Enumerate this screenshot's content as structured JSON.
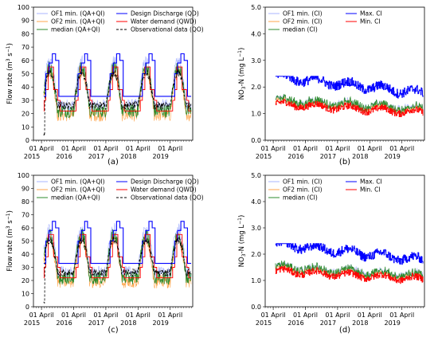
{
  "chart_data": [
    {
      "id": "a",
      "panel_label": "(a)",
      "type": "line",
      "ylabel_text": "Flow rate (m",
      "ylabel_sup1": "3",
      "ylabel_mid": " s",
      "ylabel_sup2": "−1",
      "ylabel_end": ")",
      "ylim": [
        0,
        100
      ],
      "yticks": [
        "0",
        "10",
        "20",
        "30",
        "40",
        "50",
        "60",
        "70",
        "80",
        "90",
        "100"
      ],
      "xlim": [
        2015.0,
        2019.95
      ],
      "xticks": [
        {
          "date": "01 April",
          "year": "2015",
          "x": 2015.25
        },
        {
          "date": "01 April",
          "year": "2016",
          "x": 2016.25
        },
        {
          "date": "01 April",
          "year": "2017",
          "x": 2017.25
        },
        {
          "date": "01 April",
          "year": "2018",
          "x": 2018.25
        },
        {
          "date": "01 April",
          "year": "2019",
          "x": 2019.25
        }
      ],
      "legend": [
        {
          "label": "OF1 min. (QA+QI)",
          "color": "#a8b4ff",
          "dash": ""
        },
        {
          "label": "Design Discharge (QD)",
          "color": "#0000ff",
          "dash": ""
        },
        {
          "label": "OF2 min. (QA+QI)",
          "color": "#ffa64d",
          "dash": ""
        },
        {
          "label": "Water demand (QWD)",
          "color": "#ff0000",
          "dash": ""
        },
        {
          "label": "median (QA+QI)",
          "color": "#2e8b2e",
          "dash": ""
        },
        {
          "label": "Observational data (QO)",
          "color": "#000000",
          "dash": "3,2"
        }
      ],
      "design_discharge": {
        "base": 33,
        "steps": [
          50,
          58,
          65,
          60
        ]
      },
      "water_demand": {
        "low": 22,
        "mid": [
          30,
          38
        ],
        "peak": 55
      },
      "observational_low_year": "2015",
      "observational_min": 2
    },
    {
      "id": "b",
      "panel_label": "(b)",
      "type": "line",
      "ylabel_text": "NO",
      "ylabel_sub": "3",
      "ylabel_end": "-N (mg L",
      "ylabel_sup": "−1",
      "ylabel_close": ")",
      "ylim": [
        0,
        5
      ],
      "yticks": [
        "0.0",
        "1.0",
        "2.0",
        "3.0",
        "4.0",
        "5.0"
      ],
      "xlim": [
        2015.0,
        2019.95
      ],
      "xticks": [
        {
          "date": "01 April",
          "year": "2015",
          "x": 2015.25
        },
        {
          "date": "01 April",
          "year": "2016",
          "x": 2016.25
        },
        {
          "date": "01 April",
          "year": "2017",
          "x": 2017.25
        },
        {
          "date": "01 April",
          "year": "2018",
          "x": 2018.25
        },
        {
          "date": "01 April",
          "year": "2019",
          "x": 2019.25
        }
      ],
      "legend": [
        {
          "label": "OF1 min. (CI)",
          "color": "#a8b4ff",
          "dash": ""
        },
        {
          "label": "Max. CI",
          "color": "#0000ff",
          "dash": ""
        },
        {
          "label": "OF2 min. (CI)",
          "color": "#ffa64d",
          "dash": ""
        },
        {
          "label": "Min. CI",
          "color": "#ff0000",
          "dash": ""
        },
        {
          "label": "median (CI)",
          "color": "#2e8b2e",
          "dash": ""
        }
      ],
      "max_ci_range": [
        1.5,
        2.4
      ],
      "min_ci_range": [
        0.8,
        1.6
      ]
    },
    {
      "id": "c",
      "panel_label": "(c)",
      "type": "line",
      "ylabel_text": "Flow rate (m",
      "ylabel_sup1": "3",
      "ylabel_mid": " s",
      "ylabel_sup2": "−1",
      "ylabel_end": ")",
      "ylim": [
        0,
        100
      ],
      "yticks": [
        "0",
        "10",
        "20",
        "30",
        "40",
        "50",
        "60",
        "70",
        "80",
        "90",
        "100"
      ],
      "xlim": [
        2015.0,
        2019.95
      ],
      "xticks": [
        {
          "date": "01 April",
          "year": "2015",
          "x": 2015.25
        },
        {
          "date": "01 April",
          "year": "2016",
          "x": 2016.25
        },
        {
          "date": "01 April",
          "year": "2017",
          "x": 2017.25
        },
        {
          "date": "01 April",
          "year": "2018",
          "x": 2018.25
        },
        {
          "date": "01 April",
          "year": "2019",
          "x": 2019.25
        }
      ],
      "legend": [
        {
          "label": "OF1 min. (QA+QI)",
          "color": "#a8b4ff",
          "dash": ""
        },
        {
          "label": "Design Discharge (QD)",
          "color": "#0000ff",
          "dash": ""
        },
        {
          "label": "OF2 min. (QA+QI)",
          "color": "#ffa64d",
          "dash": ""
        },
        {
          "label": "Water demand (QWD)",
          "color": "#ff0000",
          "dash": ""
        },
        {
          "label": "median (QA+QI)",
          "color": "#2e8b2e",
          "dash": ""
        },
        {
          "label": "Observational data (QO)",
          "color": "#000000",
          "dash": "3,2"
        }
      ],
      "design_discharge": {
        "base": 33,
        "steps": [
          50,
          58,
          65,
          60
        ]
      },
      "water_demand": {
        "low": 22,
        "mid": [
          30,
          38
        ],
        "peak": 55
      },
      "observational_low_year": "2015",
      "observational_min": 2
    },
    {
      "id": "d",
      "panel_label": "(d)",
      "type": "line",
      "ylabel_text": "NO",
      "ylabel_sub": "3",
      "ylabel_end": "-N (mg L",
      "ylabel_sup": "−1",
      "ylabel_close": ")",
      "ylim": [
        0,
        5
      ],
      "yticks": [
        "0.0",
        "1.0",
        "2.0",
        "3.0",
        "4.0",
        "5.0"
      ],
      "xlim": [
        2015.0,
        2019.95
      ],
      "xticks": [
        {
          "date": "01 April",
          "year": "2015",
          "x": 2015.25
        },
        {
          "date": "01 April",
          "year": "2016",
          "x": 2016.25
        },
        {
          "date": "01 April",
          "year": "2017",
          "x": 2017.25
        },
        {
          "date": "01 April",
          "year": "2018",
          "x": 2018.25
        },
        {
          "date": "01 April",
          "year": "2019",
          "x": 2019.25
        }
      ],
      "legend": [
        {
          "label": "OF1 min. (CI)",
          "color": "#a8b4ff",
          "dash": ""
        },
        {
          "label": "Max. CI",
          "color": "#0000ff",
          "dash": ""
        },
        {
          "label": "OF2 min. (CI)",
          "color": "#ffa64d",
          "dash": ""
        },
        {
          "label": "Min. CI",
          "color": "#ff0000",
          "dash": ""
        },
        {
          "label": "median (CI)",
          "color": "#2e8b2e",
          "dash": ""
        }
      ],
      "max_ci_range": [
        1.5,
        2.4
      ],
      "min_ci_range": [
        0.8,
        1.6
      ]
    }
  ]
}
